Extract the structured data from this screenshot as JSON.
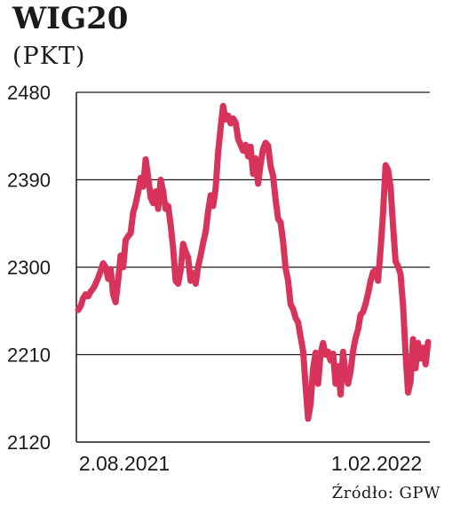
{
  "chart_data": {
    "type": "line",
    "title": "WIG20",
    "unit": "(PKT)",
    "source": "Źródło: GPW",
    "ylim": [
      2120,
      2480
    ],
    "yticks": [
      "2480",
      "2390",
      "2300",
      "2210",
      "2120"
    ],
    "x_start_label": "2.08.2021",
    "x_end_label": "1.02.2022",
    "grid": true,
    "line_color": "#d8335a",
    "series": [
      {
        "values": [
          2256,
          2260,
          2268,
          2272,
          2270,
          2275,
          2278,
          2283,
          2289,
          2296,
          2304,
          2300,
          2288,
          2298,
          2272,
          2264,
          2286,
          2312,
          2300,
          2328,
          2332,
          2335,
          2356,
          2365,
          2377,
          2392,
          2383,
          2411,
          2393,
          2372,
          2366,
          2378,
          2360,
          2390,
          2378,
          2360,
          2363,
          2344,
          2320,
          2286,
          2283,
          2297,
          2324,
          2316,
          2310,
          2286,
          2294,
          2283,
          2301,
          2312,
          2325,
          2336,
          2357,
          2374,
          2363,
          2381,
          2418,
          2443,
          2466,
          2452,
          2456,
          2448,
          2453,
          2449,
          2432,
          2426,
          2420,
          2426,
          2414,
          2424,
          2396,
          2412,
          2386,
          2406,
          2422,
          2428,
          2425,
          2404,
          2394,
          2370,
          2350,
          2346,
          2326,
          2299,
          2286,
          2262,
          2257,
          2248,
          2243,
          2228,
          2214,
          2178,
          2144,
          2159,
          2195,
          2212,
          2180,
          2211,
          2222,
          2210,
          2213,
          2204,
          2211,
          2180,
          2198,
          2169,
          2213,
          2189,
          2180,
          2193,
          2214,
          2227,
          2236,
          2251,
          2254,
          2262,
          2273,
          2286,
          2295,
          2297,
          2286,
          2318,
          2355,
          2405,
          2400,
          2382,
          2343,
          2306,
          2301,
          2293,
          2260,
          2211,
          2171,
          2182,
          2226,
          2196,
          2222,
          2206,
          2217,
          2200,
          2223
        ]
      }
    ]
  }
}
